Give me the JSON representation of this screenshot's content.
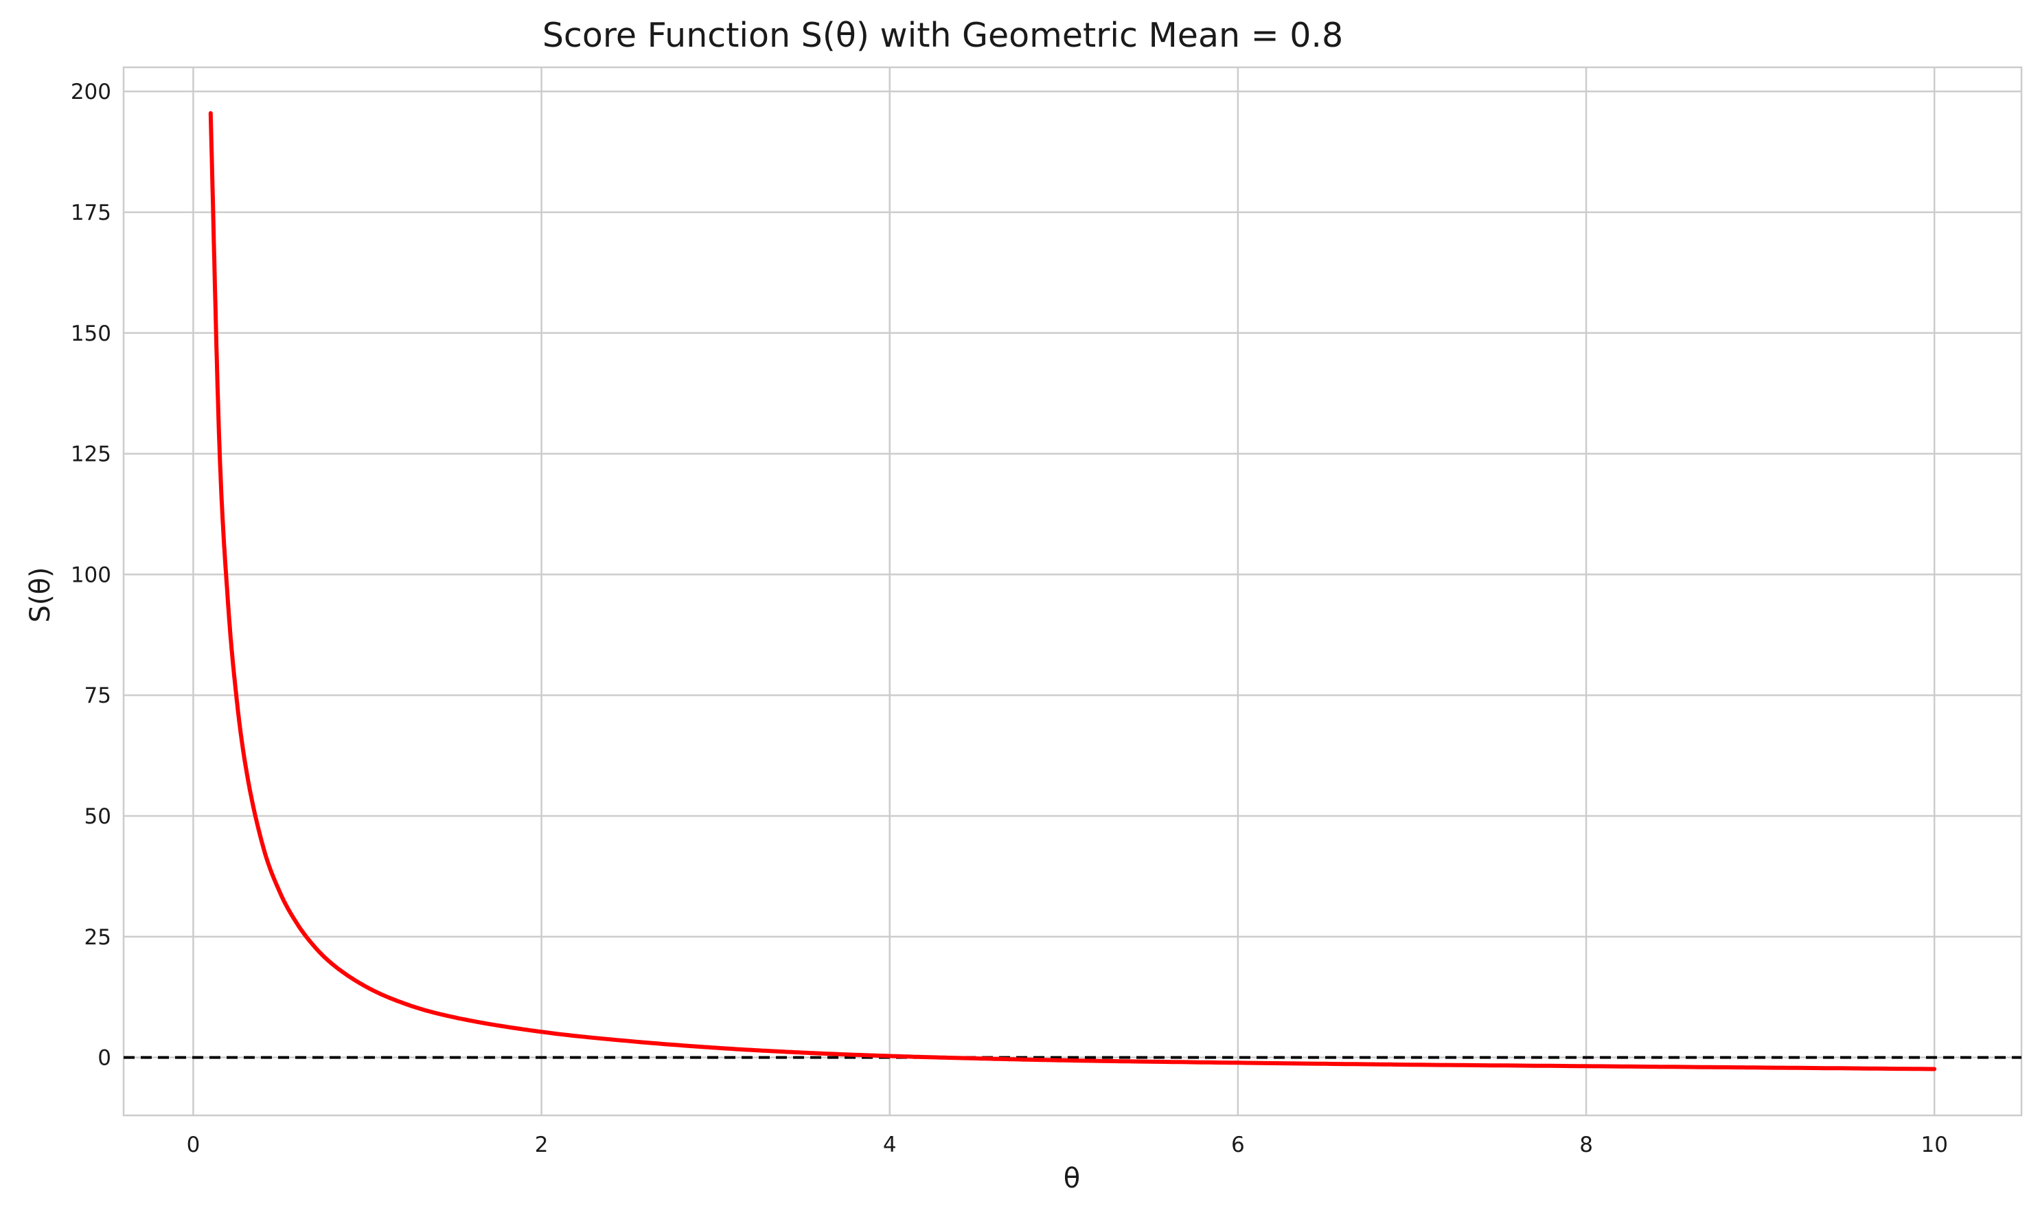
{
  "chart_data": {
    "type": "line",
    "title": "Score Function S(θ) with Geometric Mean = 0.8",
    "xlabel": "θ",
    "ylabel": "S(θ)",
    "xlim": [
      -0.4,
      10.5
    ],
    "ylim": [
      -12,
      205
    ],
    "x_ticks": [
      0,
      2,
      4,
      6,
      8,
      10
    ],
    "y_ticks": [
      0,
      25,
      50,
      75,
      100,
      125,
      150,
      175,
      200
    ],
    "x_tick_labels": [
      "0",
      "2",
      "4",
      "6",
      "8",
      "10"
    ],
    "y_tick_labels": [
      "0",
      "25",
      "50",
      "75",
      "100",
      "125",
      "150",
      "175",
      "200"
    ],
    "grid": true,
    "reference_line": {
      "y": 0,
      "style": "dashed",
      "color": "#000000"
    },
    "series": [
      {
        "color": "#ff0000",
        "x": [
          0.1,
          0.15,
          0.2,
          0.25,
          0.3,
          0.4,
          0.5,
          0.6,
          0.7,
          0.8,
          1.0,
          1.25,
          1.5,
          2.0,
          2.5,
          3.0,
          3.5,
          4.0,
          4.5,
          5.0,
          6.0,
          7.0,
          8.0,
          9.0,
          10.0
        ],
        "y": [
          195.5,
          127.0,
          94.0,
          74.0,
          60.5,
          43.8,
          34.0,
          27.5,
          22.8,
          19.3,
          14.5,
          10.7,
          8.3,
          5.3,
          3.4,
          2.0,
          1.0,
          0.3,
          -0.2,
          -0.6,
          -1.1,
          -1.5,
          -1.8,
          -2.1,
          -2.4
        ]
      }
    ]
  }
}
